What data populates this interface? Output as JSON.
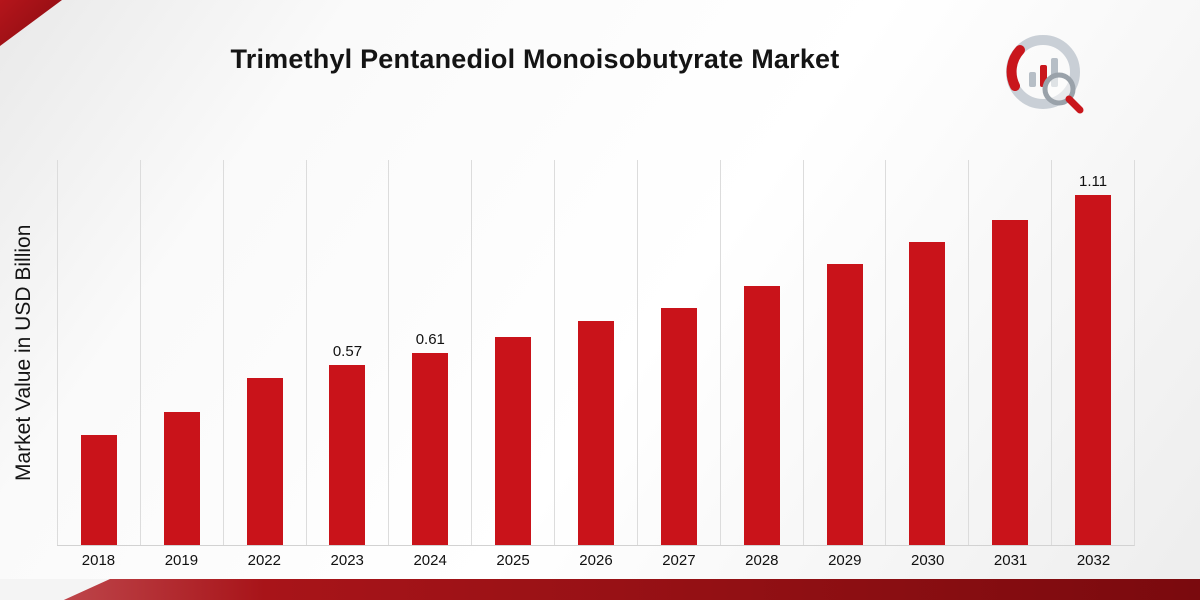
{
  "header": {
    "title": "Trimethyl Pentanediol Monoisobutyrate Market"
  },
  "branding": {
    "logo_icon": "market-research-chart-magnifier-logo",
    "accent_color": "#9c1115",
    "bar_color": "#c9131a"
  },
  "chart_data": {
    "type": "bar",
    "title": "Trimethyl Pentanediol Monoisobutyrate Market",
    "xlabel": "",
    "ylabel": "Market Value in USD Billion",
    "categories": [
      "2018",
      "2019",
      "2022",
      "2023",
      "2024",
      "2025",
      "2026",
      "2027",
      "2028",
      "2029",
      "2030",
      "2031",
      "2032"
    ],
    "values": [
      0.35,
      0.42,
      0.53,
      0.57,
      0.61,
      0.66,
      0.71,
      0.75,
      0.82,
      0.89,
      0.96,
      1.03,
      1.11
    ],
    "data_labels": [
      "",
      "",
      "",
      "0.57",
      "0.61",
      "",
      "",
      "",
      "",
      "",
      "",
      "",
      "1.11"
    ],
    "ylim": [
      0,
      1.22
    ],
    "bar_color": "#c9131a",
    "gridlines": "vertical",
    "legend": "none",
    "unit": "USD Billion"
  }
}
